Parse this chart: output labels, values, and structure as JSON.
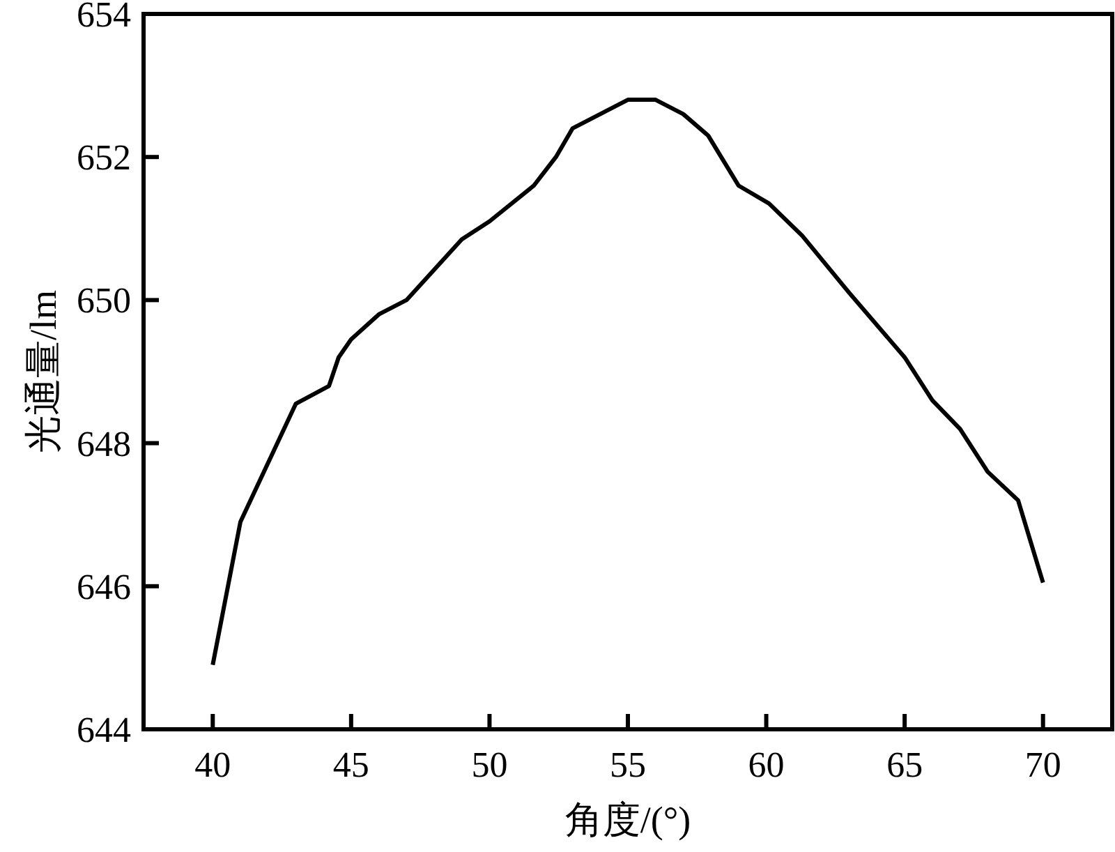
{
  "chart_data": {
    "type": "line",
    "xlabel": "角度/(°)",
    "ylabel": "光通量/lm",
    "x": [
      40,
      41,
      43,
      44.2,
      44.55,
      45,
      46,
      47,
      49,
      50,
      51.6,
      52.4,
      53,
      55,
      56,
      57,
      57.9,
      59,
      60.1,
      61.3,
      63,
      65,
      66,
      67,
      68,
      69.1,
      70
    ],
    "series": [
      {
        "color": "#000000",
        "values": [
          644.9,
          646.9,
          648.55,
          648.8,
          649.2,
          649.45,
          649.8,
          650.0,
          650.85,
          651.1,
          651.6,
          652.0,
          652.4,
          652.8,
          652.8,
          652.6,
          652.3,
          651.6,
          651.35,
          650.9,
          650.1,
          649.2,
          648.6,
          648.2,
          647.6,
          647.2,
          646.05
        ]
      }
    ],
    "xlim": [
      37.5,
      72.5
    ],
    "ylim": [
      644,
      654
    ],
    "xticks": [
      40,
      45,
      50,
      55,
      60,
      65,
      70
    ],
    "yticks": [
      644,
      646,
      648,
      650,
      652,
      654
    ]
  }
}
